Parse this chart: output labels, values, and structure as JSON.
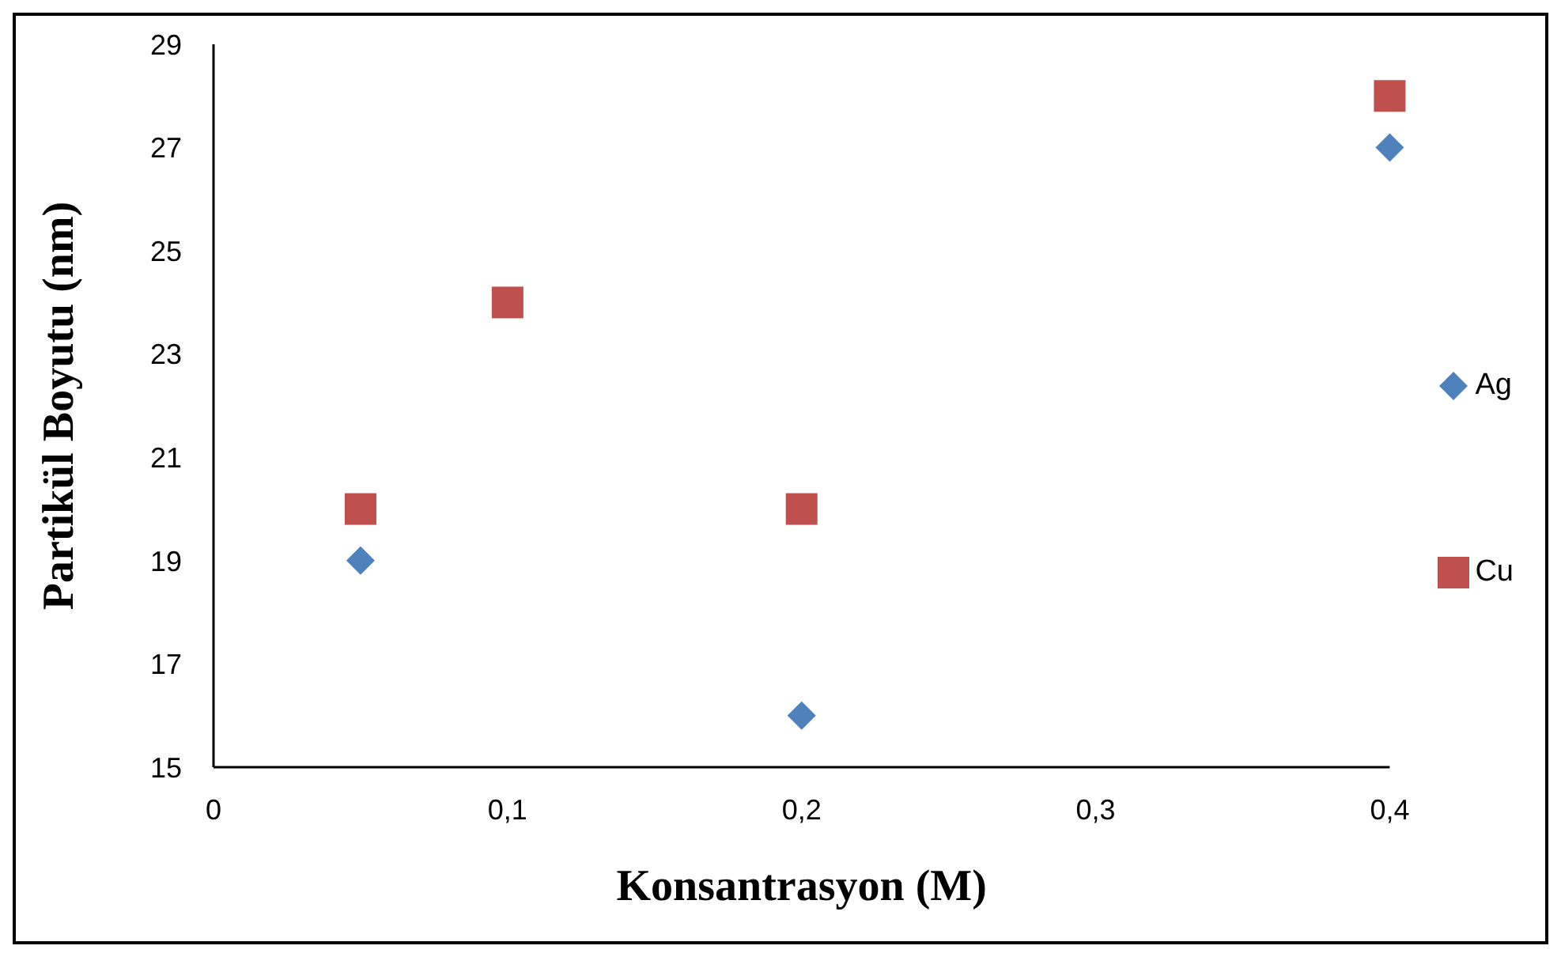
{
  "chart_data": {
    "type": "scatter",
    "xlabel": "Konsantrasyon (M)",
    "ylabel": "Partikül Boyutu (nm)",
    "xlim": [
      0,
      0.4
    ],
    "xticks": [
      0,
      {
        "value": 0.1,
        "label": "0,1"
      },
      {
        "value": 0.2,
        "label": "0,2"
      },
      {
        "value": 0.3,
        "label": "0,3"
      },
      {
        "value": 0.4,
        "label": "0,4"
      }
    ],
    "ylim": [
      15,
      29
    ],
    "yticks": [
      15,
      17,
      19,
      21,
      23,
      25,
      27,
      29
    ],
    "grid": false,
    "legend": "right",
    "series": [
      {
        "name": "Ag",
        "color": "#4f81bd",
        "marker": "diamond",
        "x": [
          0.05,
          0.2,
          0.4
        ],
        "values": [
          19,
          16,
          27
        ]
      },
      {
        "name": "Cu",
        "color": "#c0504d",
        "marker": "square",
        "x": [
          0.05,
          0.1,
          0.2,
          0.4
        ],
        "values": [
          20,
          24,
          20,
          28
        ]
      }
    ]
  }
}
